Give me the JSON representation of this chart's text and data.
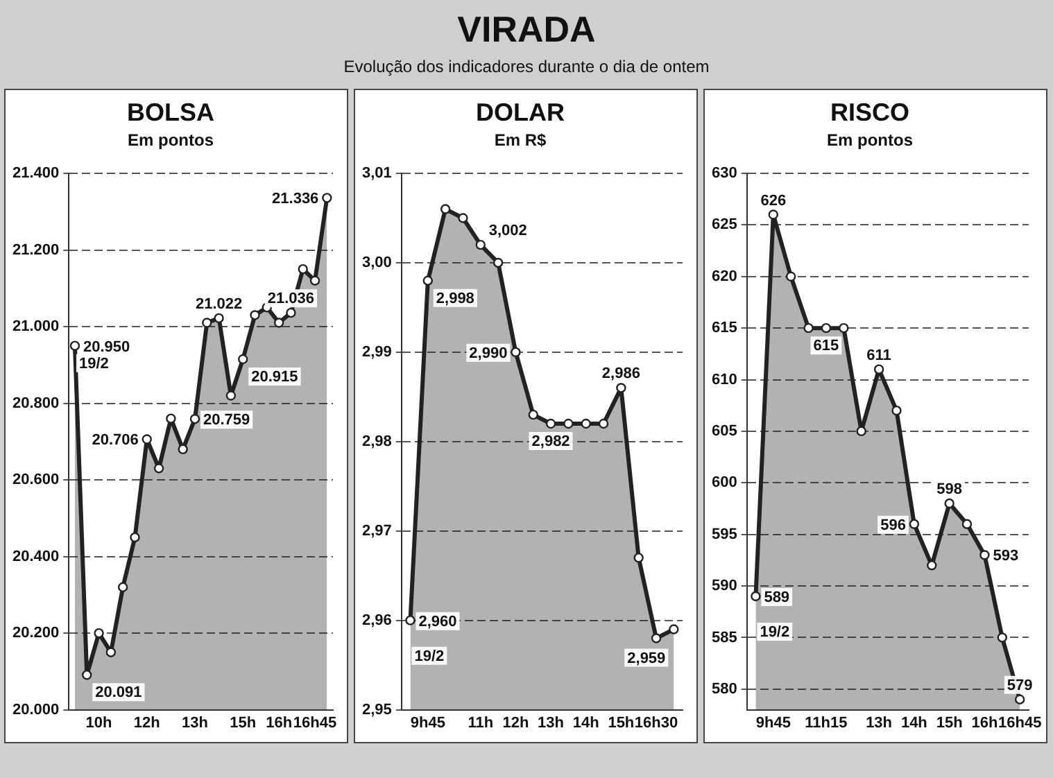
{
  "chart_data": [
    {
      "type": "other",
      "title": "VIRADA",
      "subtitle": "Evolução dos indicadores durante o dia de ontem"
    },
    {
      "type": "area",
      "title": "BOLSA",
      "subtitle": "Em pontos",
      "categories": [
        null,
        null,
        "10h",
        null,
        null,
        null,
        "12h",
        null,
        null,
        null,
        "13h",
        null,
        null,
        null,
        "15h",
        null,
        null,
        "16h",
        null,
        null,
        "16h45",
        null
      ],
      "series": [
        {
          "color": "#222222",
          "values": [
            20950,
            20091,
            20200,
            20150,
            20320,
            20450,
            20706,
            20630,
            20760,
            20680,
            20759,
            21010,
            21022,
            20820,
            20915,
            21030,
            21050,
            21010,
            21036,
            21150,
            21120,
            21336
          ],
          "value_labels": [
            "20.950",
            "20.091",
            null,
            null,
            null,
            null,
            "20.706",
            null,
            null,
            null,
            "20.759",
            null,
            "21.022",
            null,
            "20.915",
            null,
            null,
            null,
            "21.036",
            null,
            null,
            "21.336"
          ]
        }
      ],
      "ylim": [
        20000,
        21400
      ],
      "yticks": [
        {
          "value": 20000,
          "label": "20.000"
        },
        {
          "value": 20200,
          "label": "20.200"
        },
        {
          "value": 20400,
          "label": "20.400"
        },
        {
          "value": 20600,
          "label": "20.600"
        },
        {
          "value": 20800,
          "label": "20.800"
        },
        {
          "value": 21000,
          "label": "21.000"
        },
        {
          "value": 21200,
          "label": "21.200"
        },
        {
          "value": 21400,
          "label": "21.400"
        }
      ],
      "grid": "y",
      "marker": "circle",
      "line_style": "solid",
      "annotations": [
        "19/2"
      ]
    },
    {
      "type": "area",
      "title": "DOLAR",
      "subtitle": "Em R$",
      "categories": [
        null,
        "9h45",
        null,
        null,
        "11h",
        null,
        "12h",
        null,
        "13h",
        null,
        "14h",
        null,
        "15h",
        null,
        "16h30",
        null
      ],
      "series": [
        {
          "color": "#222222",
          "values": [
            2.96,
            2.998,
            3.006,
            3.005,
            3.002,
            3.0,
            2.99,
            2.983,
            2.982,
            2.982,
            2.982,
            2.982,
            2.986,
            2.967,
            2.958,
            2.959
          ],
          "value_labels": [
            "2,960",
            "2,998",
            null,
            null,
            "3,002",
            null,
            "2,990",
            null,
            "2,982",
            null,
            null,
            null,
            "2,986",
            null,
            null,
            "2,959"
          ]
        }
      ],
      "ylim": [
        2.95,
        3.01
      ],
      "yticks": [
        {
          "value": 2.95,
          "label": "2,95"
        },
        {
          "value": 2.96,
          "label": "2,96"
        },
        {
          "value": 2.97,
          "label": "2,97"
        },
        {
          "value": 2.98,
          "label": "2,98"
        },
        {
          "value": 2.99,
          "label": "2,99"
        },
        {
          "value": 3.0,
          "label": "3,00"
        },
        {
          "value": 3.01,
          "label": "3,01"
        }
      ],
      "grid": "y",
      "marker": "circle",
      "line_style": "solid",
      "annotations": [
        "19/2"
      ]
    },
    {
      "type": "area",
      "title": "RISCO",
      "subtitle": "Em pontos",
      "categories": [
        null,
        "9h45",
        null,
        null,
        "11h15",
        null,
        null,
        "13h",
        null,
        "14h",
        null,
        "15h",
        null,
        "16h",
        null,
        "16h45"
      ],
      "series": [
        {
          "color": "#222222",
          "values": [
            589,
            626,
            620,
            615,
            615,
            615,
            605,
            611,
            607,
            596,
            592,
            598,
            596,
            593,
            585,
            579
          ],
          "value_labels": [
            "589",
            "626",
            null,
            null,
            "615",
            null,
            null,
            "611",
            null,
            "596",
            null,
            "598",
            null,
            "593",
            null,
            "579"
          ]
        }
      ],
      "ylim": [
        578,
        630
      ],
      "yticks": [
        580,
        585,
        590,
        595,
        600,
        605,
        610,
        615,
        620,
        625,
        630
      ],
      "grid": "y",
      "marker": "circle",
      "line_style": "solid",
      "annotations": [
        "19/2"
      ]
    }
  ]
}
